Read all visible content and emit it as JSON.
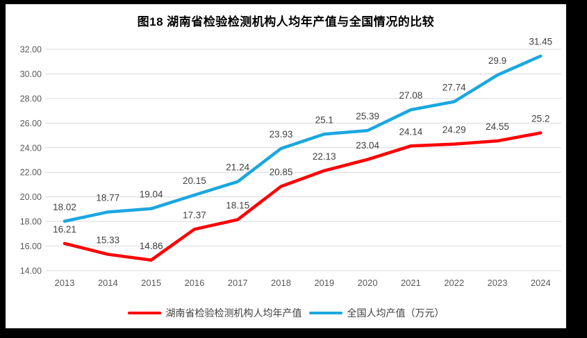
{
  "window": {
    "background_color": "#000000",
    "chart_background_color": "#FFFFFF"
  },
  "title": "图18 湖南省检验检测机构人均年产值与全国情况的比较",
  "chart_data": {
    "type": "line",
    "title": "图18 湖南省检验检测机构人均年产值与全国情况的比较",
    "categories": [
      "2013",
      "2014",
      "2015",
      "2016",
      "2017",
      "2018",
      "2019",
      "2020",
      "2021",
      "2022",
      "2023",
      "2024"
    ],
    "series": [
      {
        "name": "湖南省检验检测机构人均年产值",
        "color": "#FE0000",
        "values": [
          16.21,
          15.33,
          14.86,
          17.37,
          18.15,
          20.85,
          22.13,
          23.04,
          24.14,
          24.29,
          24.55,
          25.2
        ],
        "data_labels": [
          "16.21",
          "15.33",
          "14.86",
          "17.37",
          "18.15",
          "20.85",
          "22.13",
          "23.04",
          "24.14",
          "24.29",
          "24.55",
          "25.2"
        ]
      },
      {
        "name": "全国人均产值（万元）",
        "color": "#1AA7E0",
        "values": [
          18.02,
          18.77,
          19.04,
          20.15,
          21.24,
          23.93,
          25.1,
          25.39,
          27.08,
          27.74,
          29.9,
          31.45
        ],
        "data_labels": [
          "18.02",
          "18.77",
          "19.04",
          "20.15",
          "21.24",
          "23.93",
          "25.1",
          "25.39",
          "27.08",
          "27.74",
          "29.9",
          "31.45"
        ]
      }
    ],
    "ylim": [
      14,
      32
    ],
    "ytick_step": 2,
    "ytick_labels": [
      "14.00",
      "16.00",
      "18.00",
      "20.00",
      "22.00",
      "24.00",
      "26.00",
      "28.00",
      "30.00",
      "32.00"
    ],
    "xlabel": "",
    "ylabel": "",
    "grid": true,
    "gridline_color": "#D9D9D9",
    "axis_label_color": "#595959",
    "data_label_color": "#404040",
    "legend_position": "bottom"
  },
  "legend": {
    "items": [
      {
        "label": "湖南省检验检测机构人均年产值",
        "color": "#FE0000"
      },
      {
        "label": "全国人均产值（万元）",
        "color": "#1AA7E0"
      }
    ]
  }
}
